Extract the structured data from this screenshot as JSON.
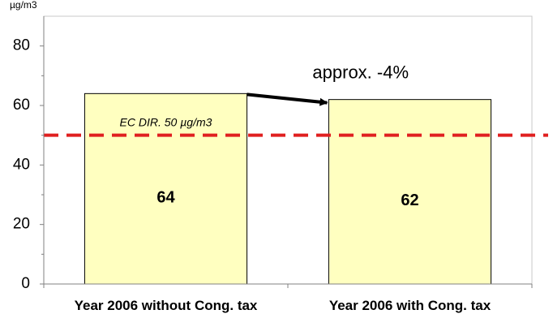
{
  "chart_data": {
    "type": "bar",
    "unit_label": "µg/m3",
    "categories": [
      "Year 2006 without Cong. tax",
      "Year 2006 with Cong. tax"
    ],
    "values": [
      64,
      62
    ],
    "data_labels": [
      "64",
      "62"
    ],
    "ylim": [
      0,
      90
    ],
    "yticks": [
      0,
      20,
      40,
      60,
      80
    ],
    "ytick_labels": [
      "0",
      "20",
      "40",
      "60",
      "80"
    ],
    "grid": false,
    "reference_line": {
      "value": 50,
      "label": "EC DIR. 50 µg/m3",
      "style": "dashed"
    },
    "annotation": {
      "text": "approx. -4%",
      "kind": "arrow",
      "from": 0,
      "to": 1
    },
    "colors": {
      "bar_fill": "#ffffc0",
      "bar_stroke": "#000000",
      "reference_line": "#e02020",
      "arrow": "#000000"
    }
  }
}
